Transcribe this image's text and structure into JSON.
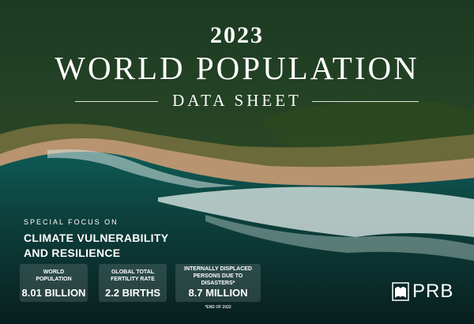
{
  "header": {
    "year": "2023",
    "title": "WORLD POPULATION",
    "subtitle": "DATA SHEET"
  },
  "focus": {
    "kicker": "SPECIAL FOCUS ON",
    "lines": [
      "CLIMATE VULNERABILITY",
      "AND RESILIENCE"
    ]
  },
  "stats": [
    {
      "label": "WORLD POPULATION",
      "value": "8.01 BILLION"
    },
    {
      "label": "GLOBAL TOTAL FERTILITY RATE",
      "value": "2.2 BIRTHS"
    },
    {
      "label": "INTERNALLY DISPLACED PERSONS DUE TO DISASTERS*",
      "value": "8.7 MILLION"
    }
  ],
  "footnote": "*END OF 2022",
  "logo": "PRB"
}
